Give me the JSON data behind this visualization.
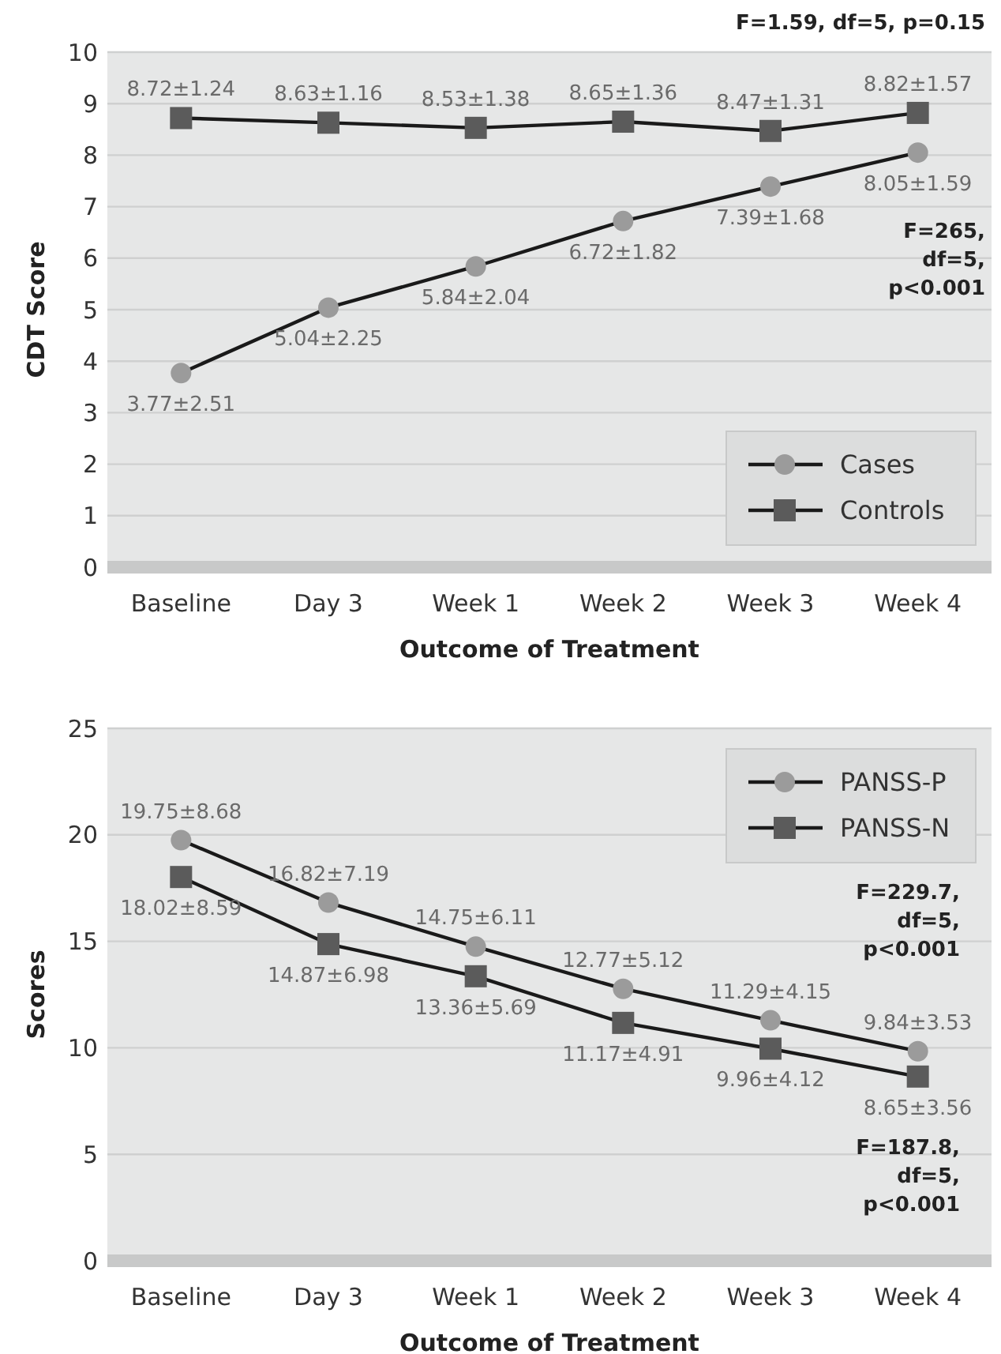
{
  "chart_data": [
    {
      "type": "line",
      "xlabel": "Outcome of Treatment",
      "ylabel": "CDT Score",
      "categories": [
        "Baseline",
        "Day 3",
        "Week 1",
        "Week 2",
        "Week 3",
        "Week 4"
      ],
      "ylim": [
        0,
        10
      ],
      "yticks": [
        0,
        1,
        2,
        3,
        4,
        5,
        6,
        7,
        8,
        9,
        10
      ],
      "grid": "y",
      "legend": "bottom right",
      "line_style": "solid",
      "series": [
        {
          "name": "Cases",
          "color": "#9b9b9b",
          "marker": "circle",
          "values": [
            3.77,
            5.04,
            5.84,
            6.72,
            7.39,
            8.05
          ],
          "value_labels": [
            "3.77±2.51",
            "5.04±2.25",
            "5.84±2.04",
            "6.72±1.82",
            "7.39±1.68",
            "8.05±1.59"
          ]
        },
        {
          "name": "Controls",
          "color": "#5b5b5b",
          "marker": "square",
          "values": [
            8.72,
            8.63,
            8.53,
            8.65,
            8.47,
            8.82
          ],
          "value_labels": [
            "8.72±1.24",
            "8.63±1.16",
            "8.53±1.38",
            "8.65±1.36",
            "8.47±1.31",
            "8.82±1.57"
          ]
        }
      ],
      "annotations": [
        "F=1.59, df=5, p=0.15",
        "F=265,\ndf=5,\np<0.001"
      ]
    },
    {
      "type": "line",
      "xlabel": "Outcome of Treatment",
      "ylabel": "Scores",
      "categories": [
        "Baseline",
        "Day 3",
        "Week 1",
        "Week 2",
        "Week 3",
        "Week 4"
      ],
      "ylim": [
        0,
        25
      ],
      "yticks": [
        0,
        5,
        10,
        15,
        20,
        25
      ],
      "grid": "y",
      "legend": "top right",
      "line_style": "solid",
      "series": [
        {
          "name": "PANSS-P",
          "color": "#9b9b9b",
          "marker": "circle",
          "values": [
            19.75,
            16.82,
            14.75,
            12.77,
            11.29,
            9.84
          ],
          "value_labels": [
            "19.75±8.68",
            "16.82±7.19",
            "14.75±6.11",
            "12.77±5.12",
            "11.29±4.15",
            "9.84±3.53"
          ]
        },
        {
          "name": "PANSS-N",
          "color": "#5b5b5b",
          "marker": "square",
          "values": [
            18.02,
            14.87,
            13.36,
            11.17,
            9.96,
            8.65
          ],
          "value_labels": [
            "18.02±8.59",
            "14.87±6.98",
            "13.36±5.69",
            "11.17±4.91",
            "9.96±4.12",
            "8.65±3.56"
          ]
        }
      ],
      "annotations": [
        "F=229.7,\ndf=5,\np<0.001",
        "F=187.8,\ndf=5,\np<0.001"
      ]
    }
  ]
}
